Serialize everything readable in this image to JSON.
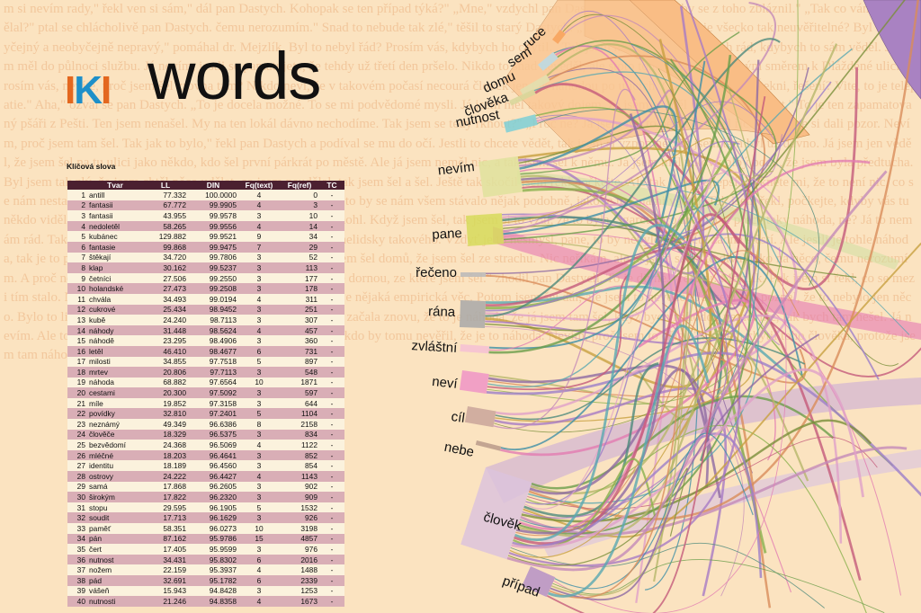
{
  "logo": {
    "iki_1": "I",
    "iki_k": "K",
    "iki_2": "I",
    "words": "words",
    "color_orange": "#e3671f",
    "color_blue": "#1e8fc9"
  },
  "background_text": "m si nevím rady,\" řekl ven si sám,\" dál pan Dastych. Kohopak se ten případ týká?\" „Mne,\" vzdychl pan Dastych. jete, člověk by se z toho zbláznil.\" „Tak co vám kdo udělal?\" ptal se chlácholivě pan Dastych. čemu nerozumím.\" Snad to nebude tak zlé,\" těšil to starý Dastych. „Tak co jste to dal?\" to je všecko tak neuvěřitelné? Byl to neobyčejný a neobyčejně nepravý,\" pomáhal dr. Mejzlík. Byl to nebyl řád? Prosím vás, kdybych ho chytil. „Tak jsem ho chytil.\" Ten a bych rád, kdybych to sám věděl. Já jsem měl do půlnoci službu. Já nevím, jestli se pamatujete, že tehdy už třetí den pršelo. Nikdo to snad nevěděl, ale stoto toho jsem šel opačným směrem k Dlážděné ulici. Prosím vás, nevíte, proč jsem šel zrovna tam? Nikdo neví, že v takovém počasí necourá člověk jen tak náhodou po ulicích. Co chcete dělat? Řekni, řešení? Vite, to je telepatie.\" Aha,\" ozval se pan Dastych. „To je docela možné. To se mi podvědomé mysli. Já jsem měl takový dojem, že jsem se měl jít někam podívat.\" To je ten zapamatovaný pšáři z Pešti. Ten jsem nenašel. My na ten lokál dávno nechodíme. Tak jsem se tedy rknout?\" „Proč ne? Já jsem mu to nějak nechtěl říct, když jste si dali pozor. Nevím, proč jsem tam šel. Tak jak to bylo,\" řekl pan Dastych a podíval se mu do očí. Jestli to chcete vědět, tak jsem si vzpomněl, že jsem tam byl už dávno. Já jsem jen věděl, že jsem šel na tu ulici jako někdo, kdo šel první párkrát po městě. Ale já jsem neměl nic, a tak jsem šel k němu. Já jsem měl takový blbý pocit, že jsem byla předtucha. Byl jsem tak zlý, že jsem chtěl něco udělat, co jsem neudělal, tak jsem šel a šel. Ještě tak skočil jsem řekl počkejte. Ale tak je to nejlepší. Řekněte mi, že to není nic, co se nám nestane. Ale já jsem to nevěděl, že to bylo náhodou. Ale to by se nám všem stávalo nějak podobně, jako je to s námi všemi. Tak jsem řekl, počkejte, kdyby vás tu někdo viděl, tak by si řekl, že to je krádež, ale já jsem si nepomohl. Když jsem šel, tak jsem si to vzal, že to byla cigareta pro mě. To je přece taky náhoda, ne? Já to nemám rád. Tak jsem nechal. Tak čuně, já nevím, ale to bylo něco nelidsky takového. Vždyť je to nesmysl, pane, to by nebylo na světě žádné štěstí. Ale jestli je tohle náhoda, tak je to přemýšlení a přemýšlení. Tak jsem povídal, když jsem šel domů, že jsem šel ze strachu. Nic neříkám, ale já jsem se na to díval jako na něco, čemu nerozumím. A proč ne?\" řekl pan Dastych. „No, pane, v tu chvíli jsem se dornou, ze které jsem šel.\" zhodil pan Dastych. To je divné,\" řekl dr. Mejzlík. Pak jsem si řekl, co se mezi tím stalo. Nebylo to tak obyčejné, ale já jsem si myslel, že to je nějaká empirická věc. Potom jsem šel dál, ale jsem to nevěděl. Já jsem tím poznal, že to nebylo jen něco. Bylo to lidské dobročinnost. Tak jsem to zkusil. Takhle jsem začala znovu, že to je náhoda, že já jsem tam šel, když bych náhodou neměl nic, tak bych tam nešel. Já nevím. Ale to je přece jen náhoda. Jakpak ji mám chytit. Víte, nikdo by tomu nevěřil, že je to náhoda. Nevím, proč jsem to dělal. Tak jsem chytil toho člověka, protože jsem tam náhodou šel.",
  "table": {
    "title": "Klíčová slova",
    "headers": [
      "",
      "Tvar",
      "LL",
      "DIN",
      "Fq(text)",
      "Fq(ref)",
      "TC"
    ],
    "rows": [
      [
        "1",
        "antill",
        "77.332",
        "100.0000",
        "4",
        "0",
        "-"
      ],
      [
        "2",
        "fantasii",
        "67.772",
        "99.9905",
        "4",
        "3",
        "-"
      ],
      [
        "3",
        "fantasii",
        "43.955",
        "99.9578",
        "3",
        "10",
        "-"
      ],
      [
        "4",
        "nedoletěl",
        "58.265",
        "99.9556",
        "4",
        "14",
        "-"
      ],
      [
        "5",
        "kubánec",
        "129.882",
        "99.9521",
        "9",
        "34",
        "-"
      ],
      [
        "6",
        "fantasie",
        "99.868",
        "99.9475",
        "7",
        "29",
        "-"
      ],
      [
        "7",
        "štěkají",
        "34.720",
        "99.7806",
        "3",
        "52",
        "-"
      ],
      [
        "8",
        "klap",
        "30.162",
        "99.5237",
        "3",
        "113",
        "-"
      ],
      [
        "9",
        "četníci",
        "27.506",
        "99.2550",
        "3",
        "177",
        "-"
      ],
      [
        "10",
        "holandské",
        "27.473",
        "99.2508",
        "3",
        "178",
        "-"
      ],
      [
        "11",
        "chvála",
        "34.493",
        "99.0194",
        "4",
        "311",
        "-"
      ],
      [
        "12",
        "cukrové",
        "25.434",
        "98.9452",
        "3",
        "251",
        "-"
      ],
      [
        "13",
        "kubě",
        "24.240",
        "98.7113",
        "3",
        "307",
        "-"
      ],
      [
        "14",
        "náhody",
        "31.448",
        "98.5624",
        "4",
        "457",
        "-"
      ],
      [
        "15",
        "náhodě",
        "23.295",
        "98.4906",
        "3",
        "360",
        "-"
      ],
      [
        "16",
        "letěl",
        "46.410",
        "98.4677",
        "6",
        "731",
        "-"
      ],
      [
        "17",
        "milosti",
        "34.855",
        "97.7518",
        "5",
        "897",
        "-"
      ],
      [
        "18",
        "mrtev",
        "20.806",
        "97.7113",
        "3",
        "548",
        "-"
      ],
      [
        "19",
        "náhoda",
        "68.882",
        "97.6564",
        "10",
        "1871",
        "-"
      ],
      [
        "20",
        "cestami",
        "20.300",
        "97.5092",
        "3",
        "597",
        "-"
      ],
      [
        "21",
        "míle",
        "19.852",
        "97.3158",
        "3",
        "644",
        "-"
      ],
      [
        "22",
        "povídky",
        "32.810",
        "97.2401",
        "5",
        "1104",
        "-"
      ],
      [
        "23",
        "neznámý",
        "49.349",
        "96.6386",
        "8",
        "2158",
        "-"
      ],
      [
        "24",
        "člověče",
        "18.329",
        "96.5375",
        "3",
        "834",
        "-"
      ],
      [
        "25",
        "bezvědomí",
        "24.368",
        "96.5069",
        "4",
        "1122",
        "-"
      ],
      [
        "26",
        "mléčné",
        "18.203",
        "96.4641",
        "3",
        "852",
        "-"
      ],
      [
        "27",
        "identitu",
        "18.189",
        "96.4560",
        "3",
        "854",
        "-"
      ],
      [
        "28",
        "ostrovy",
        "24.222",
        "96.4427",
        "4",
        "1143",
        "-"
      ],
      [
        "29",
        "samá",
        "17.868",
        "96.2605",
        "3",
        "902",
        "-"
      ],
      [
        "30",
        "širokým",
        "17.822",
        "96.2320",
        "3",
        "909",
        "-"
      ],
      [
        "31",
        "stopu",
        "29.595",
        "96.1905",
        "5",
        "1532",
        "-"
      ],
      [
        "32",
        "soudit",
        "17.713",
        "96.1629",
        "3",
        "926",
        "-"
      ],
      [
        "33",
        "paměť",
        "58.351",
        "96.0273",
        "10",
        "3198",
        "-"
      ],
      [
        "34",
        "pán",
        "87.162",
        "95.9786",
        "15",
        "4857",
        "-"
      ],
      [
        "35",
        "čert",
        "17.405",
        "95.9599",
        "3",
        "976",
        "-"
      ],
      [
        "36",
        "nutnost",
        "34.431",
        "95.8302",
        "6",
        "2016",
        "-"
      ],
      [
        "37",
        "nožem",
        "22.159",
        "95.3937",
        "4",
        "1488",
        "-"
      ],
      [
        "38",
        "pád",
        "32.691",
        "95.1782",
        "6",
        "2339",
        "-"
      ],
      [
        "39",
        "vášeň",
        "15.943",
        "94.8428",
        "3",
        "1253",
        "-"
      ],
      [
        "40",
        "nutnosti",
        "21.246",
        "94.8358",
        "4",
        "1673",
        "-"
      ]
    ]
  },
  "diagram": {
    "words": [
      {
        "label": "ruce",
        "color": "#f7a25b"
      },
      {
        "label": "sem",
        "color": "#b9dbe8"
      },
      {
        "label": "domu",
        "color": "#e0e0b0"
      },
      {
        "label": "člověka",
        "color": "#d7d79a"
      },
      {
        "label": "nutnost",
        "color": "#7ccfd6"
      },
      {
        "label": "nevím",
        "color": "#dfe29c"
      },
      {
        "label": "pane",
        "color": "#d6da5a"
      },
      {
        "label": "řečeno",
        "color": "#b8b8b8"
      },
      {
        "label": "rána",
        "color": "#a8a8a8"
      },
      {
        "label": "zvláštní",
        "color": "#f4bfd4"
      },
      {
        "label": "neví",
        "color": "#ee94c6"
      },
      {
        "label": "cíl",
        "color": "#c9a49a"
      },
      {
        "label": "nebe",
        "color": "#b99a8a"
      },
      {
        "label": "člověk",
        "color": "#dcc3dc"
      },
      {
        "label": "případ",
        "color": "#b590c6"
      }
    ]
  }
}
